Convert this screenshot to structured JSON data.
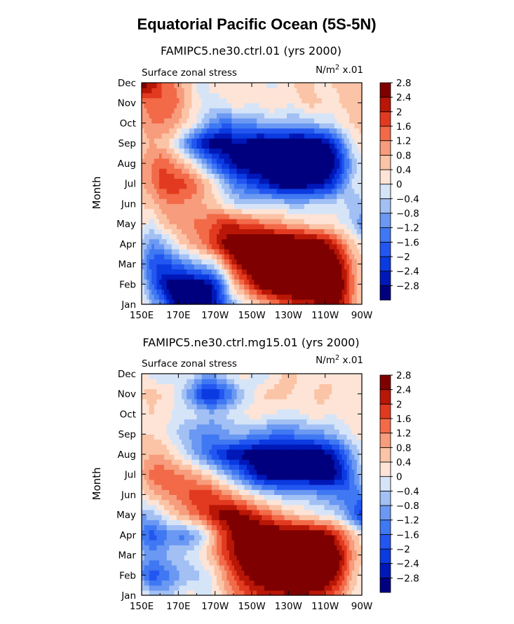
{
  "figure": {
    "title": "Equatorial Pacific Ocean (5S-5N)"
  },
  "chart_data": [
    {
      "type": "heatmap",
      "title": "FAMIPC5.ne30.ctrl.01 (yrs 2000)",
      "left_label": "Surface zonal stress",
      "right_label_base": "N/m",
      "right_label_exp": "2",
      "right_label_tail": " x.01",
      "ylabel": "Month",
      "xlabel": "",
      "x_ticks": [
        "150E",
        "170E",
        "170W",
        "150W",
        "130W",
        "110W",
        "90W"
      ],
      "y_ticks": [
        "Jan",
        "Feb",
        "Mar",
        "Apr",
        "May",
        "Jun",
        "Jul",
        "Aug",
        "Sep",
        "Oct",
        "Nov",
        "Dec"
      ],
      "xlim": [
        150,
        270
      ],
      "colorbar_labels": [
        "-2.8",
        "-2.4",
        "-2",
        "-1.6",
        "-1.2",
        "-0.8",
        "-0.4",
        "0",
        "0.4",
        "0.8",
        "1.2",
        "1.6",
        "2",
        "2.4",
        "2.8"
      ],
      "grid": [
        [
          0.3,
          -0.6,
          -1.2,
          -2.6,
          -3.2,
          -3.4,
          -3.2,
          -2.8,
          -2.0,
          -0.8,
          -0.2,
          0.2,
          0.6,
          1.0,
          1.4,
          1.8,
          2.0,
          2.2,
          2.4,
          2.6,
          2.2,
          1.2,
          0.3
        ],
        [
          -0.2,
          -1.6,
          -2.6,
          -3.2,
          -3.4,
          -3.4,
          -3.2,
          -2.8,
          -1.6,
          0.4,
          1.2,
          2.0,
          2.8,
          3.2,
          3.4,
          3.4,
          3.4,
          3.4,
          3.4,
          3.2,
          2.6,
          1.4,
          0.4
        ],
        [
          -0.8,
          -1.8,
          -2.2,
          -1.8,
          -1.4,
          -1.0,
          -0.6,
          -0.4,
          0.6,
          1.8,
          2.6,
          3.2,
          3.4,
          3.4,
          3.4,
          3.4,
          3.4,
          3.4,
          3.4,
          3.2,
          2.4,
          1.2,
          0.4
        ],
        [
          -0.4,
          -1.2,
          -0.8,
          -0.2,
          0.4,
          0.8,
          1.2,
          1.8,
          2.4,
          3.0,
          3.2,
          3.4,
          3.4,
          3.4,
          3.4,
          3.4,
          3.4,
          3.2,
          2.8,
          2.2,
          1.4,
          0.6,
          0.2
        ],
        [
          0.2,
          -0.2,
          0.4,
          0.8,
          1.0,
          1.2,
          1.4,
          1.6,
          2.0,
          2.0,
          1.8,
          1.6,
          1.4,
          1.2,
          1.0,
          0.8,
          0.6,
          0.4,
          0.4,
          0.2,
          0.0,
          -0.4,
          -1.2
        ],
        [
          0.4,
          0.6,
          1.0,
          1.2,
          1.2,
          1.0,
          0.8,
          0.6,
          0.2,
          -0.2,
          -0.4,
          -0.6,
          -0.4,
          -0.2,
          -0.4,
          -0.6,
          -0.6,
          -0.4,
          -0.4,
          -0.2,
          -0.2,
          -0.6,
          -0.6
        ],
        [
          0.8,
          1.2,
          1.8,
          2.0,
          1.8,
          1.6,
          1.0,
          0.4,
          -0.4,
          -1.2,
          -1.6,
          -2.0,
          -2.4,
          -2.8,
          -3.2,
          -3.2,
          -3.2,
          -3.0,
          -2.8,
          -2.4,
          -1.4,
          -0.4,
          0.0
        ],
        [
          0.8,
          1.2,
          1.6,
          1.2,
          0.8,
          0.2,
          -0.6,
          -1.4,
          -2.2,
          -2.8,
          -3.2,
          -3.4,
          -3.4,
          -3.4,
          -3.4,
          -3.4,
          -3.4,
          -3.4,
          -3.4,
          -3.2,
          -2.2,
          -0.8,
          0.0
        ],
        [
          0.6,
          0.8,
          0.6,
          0.2,
          -0.8,
          -1.8,
          -2.6,
          -3.2,
          -3.2,
          -3.0,
          -2.8,
          -3.2,
          -3.4,
          -3.4,
          -3.4,
          -3.4,
          -3.4,
          -3.4,
          -3.2,
          -2.6,
          -1.4,
          -0.2,
          0.2
        ],
        [
          0.8,
          1.2,
          1.2,
          1.0,
          0.6,
          0.2,
          -0.4,
          -1.0,
          -1.4,
          -1.4,
          -1.2,
          -1.0,
          -0.8,
          -0.6,
          -0.6,
          -0.8,
          -0.8,
          -0.6,
          -0.4,
          -0.2,
          0.2,
          0.4,
          0.6
        ],
        [
          1.2,
          1.4,
          1.6,
          1.6,
          1.0,
          0.4,
          0.0,
          -0.2,
          -0.2,
          0.2,
          0.2,
          0.0,
          0.2,
          0.4,
          0.2,
          0.0,
          0.4,
          0.6,
          0.4,
          0.2,
          0.4,
          0.6,
          0.8
        ],
        [
          2.8,
          2.4,
          1.6,
          1.4,
          0.8,
          0.4,
          -0.4,
          0.2,
          0.4,
          0.0,
          0.2,
          0.4,
          0.2,
          -0.2,
          0.2,
          0.4,
          0.6,
          0.4,
          0.2,
          0.4,
          0.6,
          0.4,
          0.6
        ]
      ]
    },
    {
      "type": "heatmap",
      "title": "FAMIPC5.ne30.ctrl.mg15.01 (yrs 2000)",
      "left_label": "Surface zonal stress",
      "right_label_base": "N/m",
      "right_label_exp": "2",
      "right_label_tail": " x.01",
      "ylabel": "Month",
      "xlabel": "",
      "x_ticks": [
        "150E",
        "170E",
        "170W",
        "150W",
        "130W",
        "110W",
        "90W"
      ],
      "y_ticks": [
        "Jan",
        "Feb",
        "Mar",
        "Apr",
        "May",
        "Jun",
        "Jul",
        "Aug",
        "Sep",
        "Oct",
        "Nov",
        "Dec"
      ],
      "xlim": [
        150,
        270
      ],
      "colorbar_labels": [
        "-2.8",
        "-2.4",
        "-2",
        "-1.6",
        "-1.2",
        "-0.8",
        "-0.4",
        "0",
        "0.4",
        "0.8",
        "1.2",
        "1.6",
        "2",
        "2.4",
        "2.8"
      ],
      "grid": [
        [
          0.2,
          -0.4,
          -0.6,
          -0.4,
          0.0,
          0.2,
          -0.2,
          0.0,
          0.4,
          1.0,
          1.4,
          1.8,
          2.0,
          2.2,
          2.2,
          2.4,
          2.4,
          2.2,
          2.0,
          1.6,
          1.0,
          0.4,
          0.0
        ],
        [
          -1.2,
          -2.0,
          -1.6,
          -1.2,
          -0.8,
          -0.6,
          -0.4,
          0.0,
          0.8,
          1.6,
          2.2,
          2.6,
          3.0,
          3.2,
          3.4,
          3.4,
          3.4,
          3.4,
          3.2,
          2.8,
          2.0,
          0.8,
          0.2
        ],
        [
          -0.6,
          -1.0,
          -0.8,
          -0.6,
          -0.4,
          -0.2,
          0.2,
          0.8,
          1.6,
          2.2,
          2.8,
          3.2,
          3.4,
          3.4,
          3.4,
          3.4,
          3.4,
          3.4,
          3.4,
          3.2,
          2.4,
          1.2,
          0.4
        ],
        [
          -1.4,
          -1.8,
          -1.6,
          -1.0,
          -1.4,
          -1.0,
          -0.6,
          0.6,
          1.6,
          2.4,
          2.8,
          3.2,
          3.2,
          3.2,
          3.2,
          3.2,
          3.2,
          3.0,
          2.8,
          2.4,
          1.6,
          0.8,
          0.2
        ],
        [
          -0.8,
          -0.6,
          -0.2,
          0.4,
          0.8,
          1.2,
          1.6,
          2.2,
          2.6,
          2.8,
          2.6,
          2.2,
          1.8,
          1.4,
          1.0,
          0.6,
          0.4,
          0.2,
          0.0,
          -0.2,
          -0.6,
          -1.4,
          -2.4
        ],
        [
          0.2,
          0.6,
          1.0,
          1.2,
          1.4,
          1.8,
          2.0,
          1.8,
          1.4,
          1.0,
          0.6,
          0.2,
          -0.2,
          -0.4,
          -0.6,
          -0.6,
          -0.6,
          -0.8,
          -1.0,
          -1.2,
          -1.4,
          -1.6,
          -1.2
        ],
        [
          0.8,
          1.4,
          1.6,
          1.4,
          1.2,
          1.0,
          0.6,
          0.2,
          -0.4,
          -1.0,
          -1.6,
          -2.4,
          -3.0,
          -3.4,
          -3.4,
          -3.4,
          -3.4,
          -3.4,
          -3.4,
          -3.2,
          -2.6,
          -1.4,
          -0.4
        ],
        [
          0.6,
          0.8,
          0.8,
          0.4,
          0.0,
          -0.6,
          -1.2,
          -1.8,
          -2.4,
          -2.8,
          -3.0,
          -3.2,
          -3.4,
          -3.4,
          -3.4,
          -3.4,
          -3.4,
          -3.4,
          -3.2,
          -2.8,
          -2.0,
          -1.0,
          -0.2
        ],
        [
          0.4,
          0.4,
          0.2,
          -0.2,
          -0.6,
          -1.0,
          -1.2,
          -1.2,
          -1.0,
          -0.8,
          -0.8,
          -1.0,
          -1.2,
          -1.4,
          -1.4,
          -1.4,
          -1.2,
          -1.2,
          -1.0,
          -0.8,
          -0.4,
          0.0,
          0.2
        ],
        [
          0.2,
          0.4,
          0.2,
          0.0,
          -0.2,
          -0.2,
          -0.4,
          -0.6,
          -0.4,
          -0.2,
          0.0,
          0.2,
          0.2,
          0.0,
          -0.2,
          -0.2,
          0.0,
          0.2,
          0.2,
          0.0,
          0.2,
          0.2,
          0.4
        ],
        [
          0.4,
          0.6,
          0.4,
          0.2,
          -0.4,
          -1.2,
          -2.2,
          -2.6,
          -2.0,
          -1.4,
          -0.6,
          -0.2,
          0.4,
          0.6,
          0.6,
          0.4,
          0.2,
          0.4,
          0.6,
          0.4,
          0.2,
          0.2,
          0.4
        ],
        [
          0.2,
          -0.2,
          -0.4,
          -0.2,
          0.0,
          -0.2,
          -0.6,
          -0.8,
          -0.4,
          0.0,
          0.2,
          0.0,
          -0.4,
          0.0,
          0.4,
          0.6,
          0.2,
          0.0,
          0.2,
          0.4,
          0.2,
          0.0,
          0.2
        ]
      ]
    }
  ]
}
